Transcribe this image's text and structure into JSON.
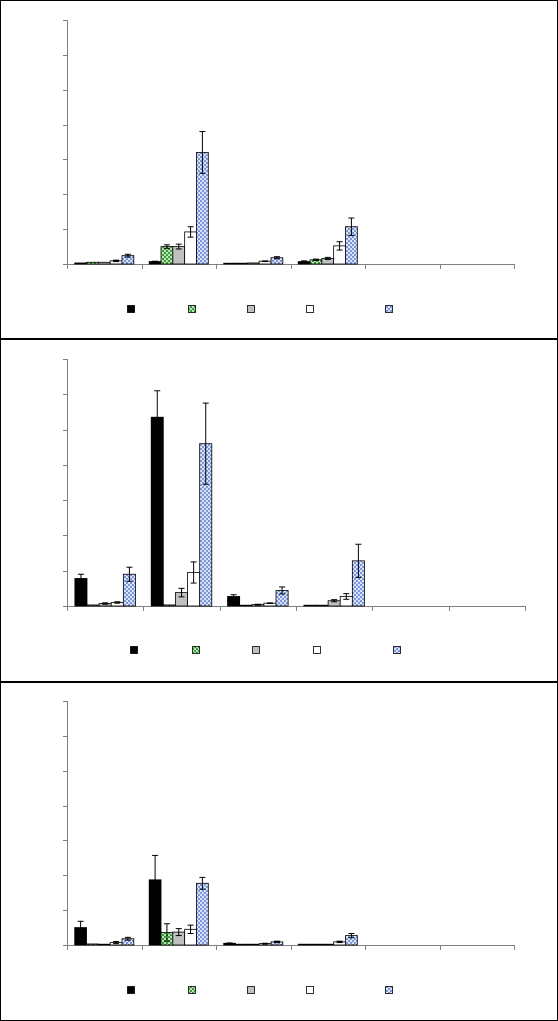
{
  "chart_data": [
    {
      "type": "bar",
      "title": "",
      "xlabel": "",
      "ylabel": "",
      "ylim": [
        0,
        7
      ],
      "yticks": [
        0,
        1,
        2,
        3,
        4,
        5,
        6,
        7
      ],
      "grid": false,
      "legend": "bottom",
      "categories": [
        "",
        "",
        "",
        "",
        "",
        ""
      ],
      "series": [
        {
          "color": "#000000",
          "pattern": "solid",
          "values": [
            0.03,
            0.07,
            0.02,
            0.07,
            null,
            null
          ],
          "errors": [
            0,
            0.01,
            0,
            0.02,
            null,
            null
          ]
        },
        {
          "color": "#8fd18f",
          "pattern": "check-green",
          "values": [
            0.05,
            0.5,
            0.02,
            0.12,
            null,
            null
          ],
          "errors": [
            0,
            0.05,
            0,
            0.02,
            null,
            null
          ]
        },
        {
          "color": "#c0c0c0",
          "pattern": "solid",
          "values": [
            0.05,
            0.5,
            0.03,
            0.16,
            null,
            null
          ],
          "errors": [
            0,
            0.07,
            0,
            0.03,
            null,
            null
          ]
        },
        {
          "color": "#ffffff",
          "pattern": "solid",
          "values": [
            0.09,
            0.92,
            0.08,
            0.52,
            null,
            null
          ],
          "errors": [
            0.02,
            0.15,
            0.01,
            0.12,
            null,
            null
          ]
        },
        {
          "color": "#b0c4f0",
          "pattern": "check-blue",
          "values": [
            0.24,
            3.2,
            0.18,
            1.07,
            null,
            null
          ],
          "errors": [
            0.04,
            0.6,
            0.03,
            0.25,
            null,
            null
          ]
        }
      ]
    },
    {
      "type": "bar",
      "title": "",
      "xlabel": "",
      "ylabel": "",
      "ylim": [
        0,
        7
      ],
      "yticks": [
        0,
        1,
        2,
        3,
        4,
        5,
        6,
        7
      ],
      "grid": false,
      "legend": "bottom",
      "categories": [
        "",
        "",
        "",
        "",
        "",
        ""
      ],
      "series": [
        {
          "color": "#000000",
          "pattern": "solid",
          "values": [
            0.78,
            5.35,
            0.27,
            0,
            null,
            null
          ],
          "errors": [
            0.12,
            0.75,
            0.05,
            0,
            null,
            null
          ]
        },
        {
          "color": "#8fd18f",
          "pattern": "check-green",
          "values": [
            0.03,
            0.03,
            0.02,
            0,
            null,
            null
          ],
          "errors": [
            0,
            0,
            0,
            0,
            null,
            null
          ]
        },
        {
          "color": "#c0c0c0",
          "pattern": "solid",
          "values": [
            0.07,
            0.38,
            0.04,
            0.15,
            null,
            null
          ],
          "errors": [
            0.02,
            0.12,
            0.01,
            0.03,
            null,
            null
          ]
        },
        {
          "color": "#ffffff",
          "pattern": "solid",
          "values": [
            0.1,
            0.95,
            0.08,
            0.27,
            null,
            null
          ],
          "errors": [
            0.02,
            0.3,
            0.01,
            0.08,
            null,
            null
          ]
        },
        {
          "color": "#b0c4f0",
          "pattern": "check-blue",
          "values": [
            0.9,
            4.6,
            0.44,
            1.28,
            null,
            null
          ],
          "errors": [
            0.2,
            1.15,
            0.1,
            0.47,
            null,
            null
          ]
        }
      ]
    },
    {
      "type": "bar",
      "title": "",
      "xlabel": "",
      "ylabel": "",
      "ylim": [
        0,
        7
      ],
      "yticks": [
        0,
        1,
        2,
        3,
        4,
        5,
        6,
        7
      ],
      "grid": false,
      "legend": "bottom",
      "categories": [
        "",
        "",
        "",
        "",
        "",
        ""
      ],
      "series": [
        {
          "color": "#000000",
          "pattern": "solid",
          "values": [
            0.5,
            1.87,
            0.05,
            0.01,
            null,
            null
          ],
          "errors": [
            0.18,
            0.7,
            0.01,
            0,
            null,
            null
          ]
        },
        {
          "color": "#8fd18f",
          "pattern": "check-green",
          "values": [
            0.03,
            0.36,
            0.02,
            0.02,
            null,
            null
          ],
          "errors": [
            0,
            0.25,
            0,
            0,
            null,
            null
          ]
        },
        {
          "color": "#c0c0c0",
          "pattern": "solid",
          "values": [
            0.02,
            0.37,
            0.02,
            0.02,
            null,
            null
          ],
          "errors": [
            0,
            0.1,
            0,
            0,
            null,
            null
          ]
        },
        {
          "color": "#ffffff",
          "pattern": "solid",
          "values": [
            0.07,
            0.45,
            0.04,
            0.09,
            null,
            null
          ],
          "errors": [
            0.03,
            0.12,
            0.01,
            0.02,
            null,
            null
          ]
        },
        {
          "color": "#b0c4f0",
          "pattern": "check-blue",
          "values": [
            0.18,
            1.77,
            0.09,
            0.27,
            null,
            null
          ],
          "errors": [
            0.04,
            0.17,
            0.02,
            0.06,
            null,
            null
          ]
        }
      ]
    }
  ]
}
